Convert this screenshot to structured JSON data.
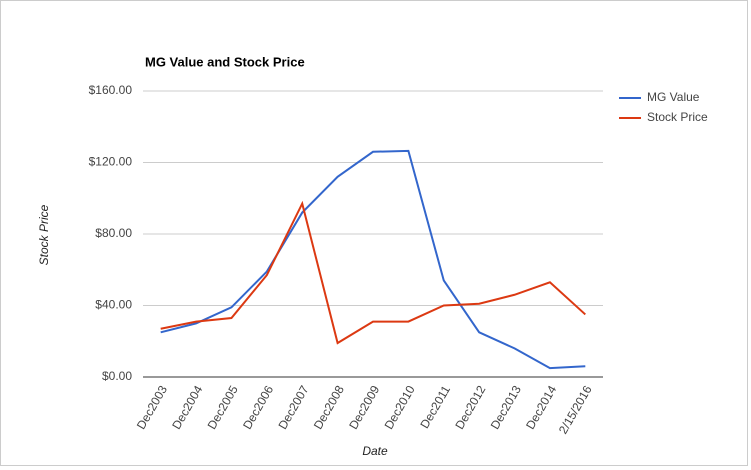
{
  "chart_data": {
    "type": "line",
    "title": "MG Value and Stock Price",
    "x_label": "Date",
    "y_label": "Stock Price",
    "categories": [
      "Dec2003",
      "Dec2004",
      "Dec2005",
      "Dec2006",
      "Dec2007",
      "Dec2008",
      "Dec2009",
      "Dec2010",
      "Dec2011",
      "Dec2012",
      "Dec2013",
      "Dec2014",
      "2/15/2016"
    ],
    "series": [
      {
        "name": "MG Value",
        "color": "#3366cc",
        "values": [
          25,
          30,
          39,
          59,
          92,
          112,
          126,
          126.5,
          54,
          25,
          16,
          5,
          6
        ]
      },
      {
        "name": "Stock Price",
        "color": "#dc3912",
        "values": [
          27,
          31,
          33,
          57,
          97,
          19,
          31,
          31,
          40,
          41,
          46,
          53,
          35
        ]
      }
    ],
    "ylim": [
      0,
      160
    ],
    "yticks": [
      {
        "value": 0,
        "label": "$0.00"
      },
      {
        "value": 40,
        "label": "$40.00"
      },
      {
        "value": 80,
        "label": "$80.00"
      },
      {
        "value": 120,
        "label": "$120.00"
      },
      {
        "value": 160,
        "label": "$160.00"
      }
    ],
    "grid": true,
    "legend": "right"
  }
}
